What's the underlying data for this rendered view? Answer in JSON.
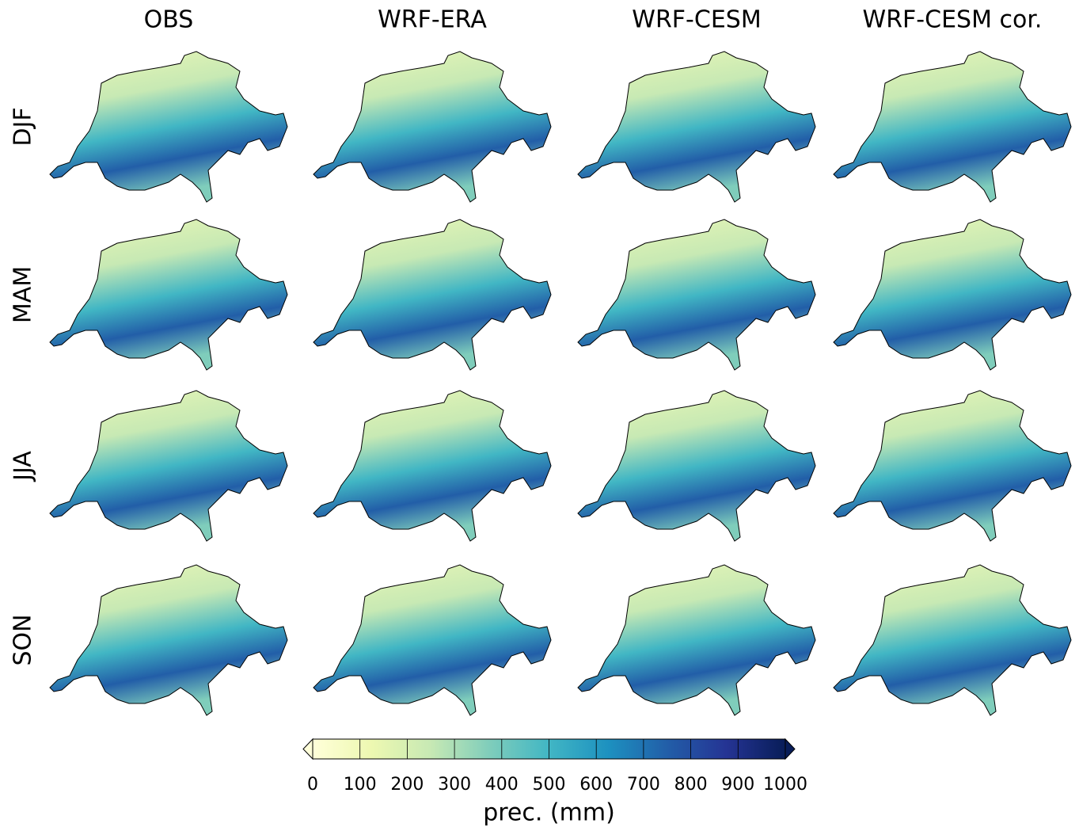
{
  "columns": [
    "OBS",
    "WRF-ERA",
    "WRF-CESM",
    "WRF-CESM cor."
  ],
  "rows": [
    "DJF",
    "MAM",
    "JJA",
    "SON"
  ],
  "colorbar": {
    "label": "prec. (mm)",
    "lim": [
      0,
      1000
    ],
    "ticks": [
      0,
      100,
      200,
      300,
      400,
      500,
      600,
      700,
      800,
      900,
      1000
    ],
    "colors": [
      "#ffffd9",
      "#edf8b1",
      "#c7e9b4",
      "#7fcdbb",
      "#41b6c4",
      "#1d91c0",
      "#225ea8",
      "#253494",
      "#081d58"
    ],
    "extend": "both"
  }
}
